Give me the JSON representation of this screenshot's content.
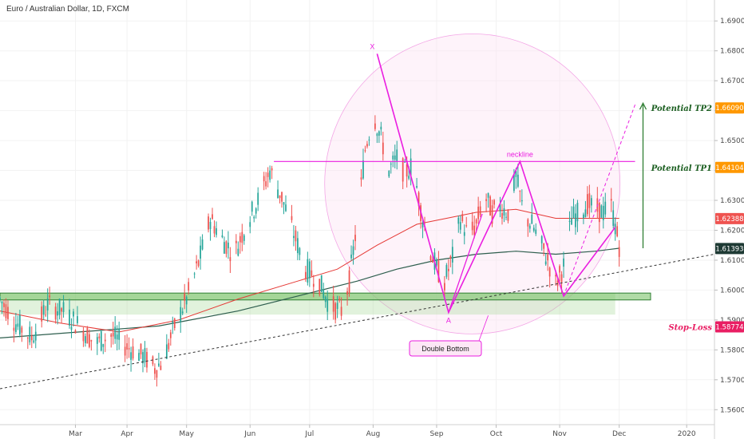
{
  "header": {
    "title": "Euro / Australian Dollar, 1D, FXCM"
  },
  "chart_data": {
    "type": "candlestick",
    "symbol": "EURAUD",
    "timeframe": "1D",
    "title": "Euro / Australian Dollar, 1D, FXCM",
    "ylim": [
      1.555,
      1.697
    ],
    "y_ticks": [
      "1.69000",
      "1.68000",
      "1.67000",
      "1.66000",
      "1.65000",
      "1.64000",
      "1.63000",
      "1.62000",
      "1.61000",
      "1.60000",
      "1.59000",
      "1.58000",
      "1.57000",
      "1.56000"
    ],
    "x_ticks": [
      "Mar",
      "Apr",
      "May",
      "Jun",
      "Jul",
      "Aug",
      "Sep",
      "Oct",
      "Nov",
      "Dec",
      "2020"
    ],
    "x_tick_day_index": [
      38,
      64,
      94,
      126,
      156,
      188,
      220,
      250,
      282,
      312,
      346
    ],
    "axis_end_day_index": 360,
    "close_path": [
      [
        0,
        1.597
      ],
      [
        8,
        1.589
      ],
      [
        16,
        1.584
      ],
      [
        24,
        1.595
      ],
      [
        32,
        1.593
      ],
      [
        40,
        1.588
      ],
      [
        48,
        1.582
      ],
      [
        56,
        1.585
      ],
      [
        64,
        1.581
      ],
      [
        72,
        1.578
      ],
      [
        78,
        1.574
      ],
      [
        82,
        1.576
      ],
      [
        88,
        1.588
      ],
      [
        94,
        1.597
      ],
      [
        100,
        1.609
      ],
      [
        106,
        1.624
      ],
      [
        112,
        1.617
      ],
      [
        118,
        1.612
      ],
      [
        124,
        1.622
      ],
      [
        130,
        1.63
      ],
      [
        136,
        1.64
      ],
      [
        142,
        1.631
      ],
      [
        148,
        1.619
      ],
      [
        154,
        1.607
      ],
      [
        160,
        1.604
      ],
      [
        166,
        1.595
      ],
      [
        172,
        1.593
      ],
      [
        176,
        1.603
      ],
      [
        180,
        1.623
      ],
      [
        184,
        1.647
      ],
      [
        188,
        1.659
      ],
      [
        192,
        1.651
      ],
      [
        196,
        1.64
      ],
      [
        200,
        1.644
      ],
      [
        204,
        1.639
      ],
      [
        208,
        1.642
      ],
      [
        212,
        1.627
      ],
      [
        216,
        1.615
      ],
      [
        220,
        1.607
      ],
      [
        224,
        1.603
      ],
      [
        228,
        1.611
      ],
      [
        232,
        1.624
      ],
      [
        236,
        1.618
      ],
      [
        240,
        1.622
      ],
      [
        244,
        1.632
      ],
      [
        248,
        1.626
      ],
      [
        252,
        1.628
      ],
      [
        256,
        1.626
      ],
      [
        260,
        1.638
      ],
      [
        264,
        1.625
      ],
      [
        268,
        1.622
      ],
      [
        272,
        1.616
      ],
      [
        276,
        1.61
      ],
      [
        280,
        1.602
      ],
      [
        284,
        1.608
      ],
      [
        288,
        1.624
      ],
      [
        292,
        1.626
      ],
      [
        296,
        1.629
      ],
      [
        300,
        1.627
      ],
      [
        304,
        1.626
      ],
      [
        308,
        1.628
      ],
      [
        312,
        1.615
      ]
    ],
    "ma_red": [
      [
        0,
        1.593
      ],
      [
        30,
        1.589
      ],
      [
        60,
        1.586
      ],
      [
        90,
        1.59
      ],
      [
        120,
        1.597
      ],
      [
        150,
        1.603
      ],
      [
        170,
        1.607
      ],
      [
        190,
        1.615
      ],
      [
        210,
        1.622
      ],
      [
        225,
        1.624
      ],
      [
        240,
        1.626
      ],
      [
        260,
        1.627
      ],
      [
        280,
        1.624
      ],
      [
        300,
        1.624
      ],
      [
        312,
        1.624
      ]
    ],
    "ma_green": [
      [
        0,
        1.584
      ],
      [
        40,
        1.586
      ],
      [
        80,
        1.588
      ],
      [
        120,
        1.593
      ],
      [
        150,
        1.598
      ],
      [
        180,
        1.603
      ],
      [
        200,
        1.607
      ],
      [
        220,
        1.61
      ],
      [
        240,
        1.612
      ],
      [
        260,
        1.613
      ],
      [
        280,
        1.612
      ],
      [
        300,
        1.613
      ],
      [
        312,
        1.614
      ]
    ],
    "support_zone_upper": [
      1.5967,
      1.599
    ],
    "support_zone_lower": [
      1.5918,
      1.599
    ],
    "neckline": 1.643,
    "neckline_label": "neckline",
    "trendline": [
      [
        0,
        1.567
      ],
      [
        360,
        1.612
      ]
    ],
    "pattern_points": {
      "X": [
        190,
        1.679
      ],
      "A": [
        226,
        1.5925
      ],
      "B": [
        262,
        1.643
      ],
      "C": [
        284,
        1.598
      ],
      "D": [
        310,
        1.621
      ]
    },
    "projection": [
      [
        284,
        1.598
      ],
      [
        320,
        1.662
      ]
    ],
    "labels": {
      "X": "X",
      "A": "A",
      "double_bottom": "Double Bottom",
      "tp1": "Potential TP1",
      "tp2": "Potential TP2",
      "sl": "Stop-Loss"
    },
    "price_badges": [
      {
        "label": "1.66090",
        "value": 1.6609,
        "color": "#ff9800"
      },
      {
        "label": "1.64104",
        "value": 1.641,
        "color": "#ff9800"
      },
      {
        "label": "1.62388",
        "value": 1.6239,
        "color": "#ef5350"
      },
      {
        "label": "1.61393",
        "value": 1.6139,
        "color": "#1e3a34"
      },
      {
        "label": "1.58774",
        "value": 1.5877,
        "color": "#e91e63"
      }
    ],
    "colors": {
      "up": "#26a69a",
      "down": "#ef5350",
      "ma_red": "#e53935",
      "ma_green": "#2e5e4e",
      "pattern": "#ea1ee0",
      "zone_fill": "#7cc36a",
      "tp": "#1b5e20",
      "sl": "#e91e63",
      "arrow": "#2e7d32"
    }
  }
}
